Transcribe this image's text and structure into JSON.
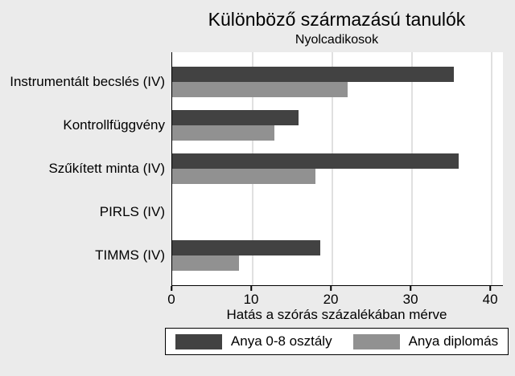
{
  "chart_data": {
    "type": "bar",
    "orientation": "horizontal",
    "title": "Különböző származású tanulók",
    "subtitle": "Nyolcadikosok",
    "categories": [
      "Instrumentált becslés (IV)",
      "Kontrollfüggvény",
      "Szűkített minta (IV)",
      "PIRLS (IV)",
      "TIMMS (IV)"
    ],
    "series": [
      {
        "name": "Anya 0-8 osztály",
        "color": "#424242",
        "values": [
          35.3,
          15.9,
          35.9,
          0,
          18.6
        ]
      },
      {
        "name": "Anya diplomás",
        "color": "#919191",
        "values": [
          22.0,
          12.8,
          18.0,
          0,
          8.4
        ]
      }
    ],
    "xlabel": "Hatás a szórás százalékában mérve",
    "xticks": [
      0,
      10,
      20,
      30,
      40
    ],
    "xlim": [
      0,
      41.5
    ],
    "grid": true,
    "legend_position": "bottom"
  },
  "colors": {
    "background": "#ebebeb",
    "plot_background": "#ffffff",
    "gridline": "#e0e0e0",
    "axis": "#000000",
    "text": "#000000"
  }
}
